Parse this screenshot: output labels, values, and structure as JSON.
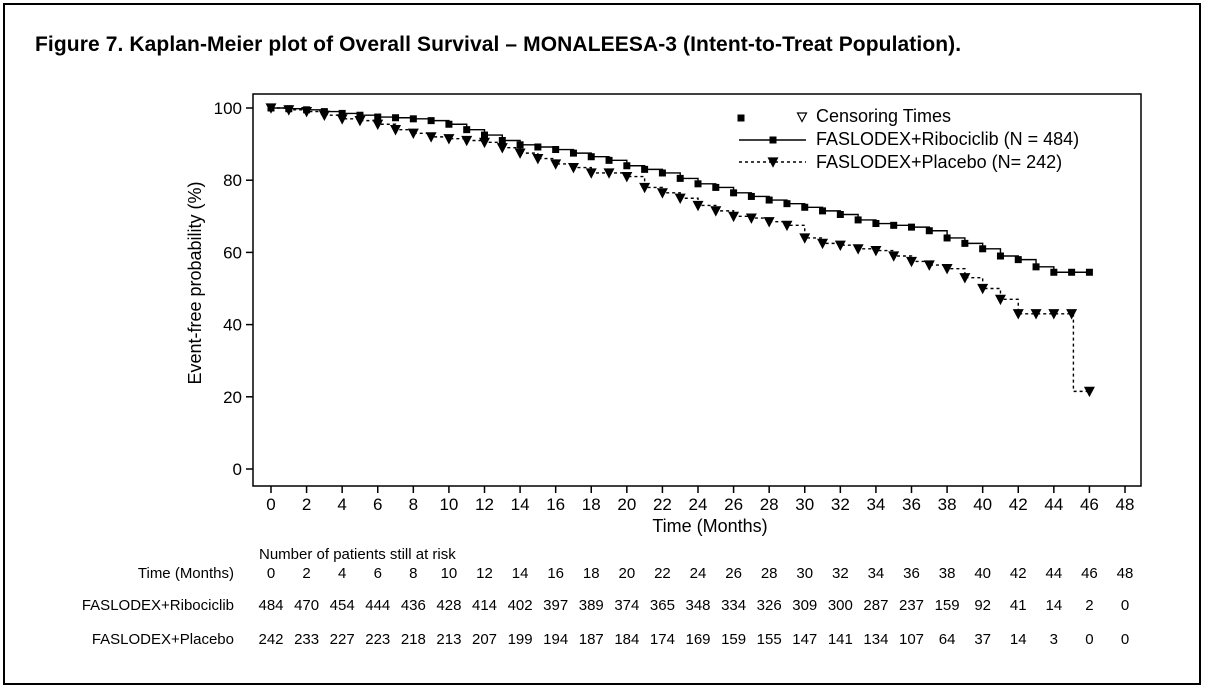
{
  "title": "Figure 7.  Kaplan-Meier plot of Overall Survival – MONALEESA-3 (Intent-to-Treat Population).",
  "colors": {
    "line": "#000000",
    "background": "#ffffff"
  },
  "chart_data": {
    "type": "line",
    "title": "",
    "xlabel": "Time (Months)",
    "ylabel": "Event-free probability (%)",
    "xlim": [
      0,
      48
    ],
    "ylim": [
      0,
      100
    ],
    "xticks": [
      0,
      2,
      4,
      6,
      8,
      10,
      12,
      14,
      16,
      18,
      20,
      22,
      24,
      26,
      28,
      30,
      32,
      34,
      36,
      38,
      40,
      42,
      44,
      46,
      48
    ],
    "yticks": [
      0,
      20,
      40,
      60,
      80,
      100
    ],
    "grid": false,
    "legend": {
      "placement": "top-right",
      "censor_label": "Censoring Times",
      "entries": [
        "FASLODEX+Ribociclib (N = 484)",
        "FASLODEX+Placebo (N= 242)"
      ]
    },
    "series": [
      {
        "name": "FASLODEX+Ribociclib (N = 484)",
        "line_style": "solid",
        "marker": "square",
        "x": [
          0,
          1,
          2,
          3,
          4,
          5,
          6,
          7,
          8,
          9,
          10,
          11,
          12,
          13,
          14,
          15,
          16,
          17,
          18,
          19,
          20,
          21,
          22,
          23,
          24,
          25,
          26,
          27,
          28,
          29,
          30,
          31,
          32,
          33,
          34,
          35,
          36,
          37,
          38,
          39,
          40,
          41,
          42,
          43,
          44,
          45,
          46
        ],
        "y": [
          100,
          99.8,
          99.5,
          99,
          98.5,
          98,
          97.5,
          97.3,
          97,
          96.5,
          95.5,
          94,
          92.5,
          91,
          89.8,
          89.2,
          88.5,
          87.5,
          86.5,
          85.5,
          84,
          83,
          82,
          80.5,
          79,
          78,
          76.5,
          75.5,
          74.5,
          73.5,
          72.5,
          71.5,
          70.5,
          69,
          68,
          67.5,
          67,
          66,
          64,
          62.5,
          61,
          59,
          58,
          56,
          54.5,
          54.5,
          54.5
        ]
      },
      {
        "name": "FASLODEX+Placebo (N= 242)",
        "line_style": "dashed",
        "marker": "triangle-down",
        "x": [
          0,
          1,
          2,
          3,
          4,
          5,
          6,
          7,
          8,
          9,
          10,
          11,
          12,
          13,
          14,
          15,
          16,
          17,
          18,
          19,
          20,
          21,
          22,
          23,
          24,
          25,
          26,
          27,
          28,
          29,
          30,
          31,
          32,
          33,
          34,
          35,
          36,
          37,
          38,
          39,
          40,
          41,
          42,
          43,
          44,
          45,
          45.1,
          46
        ],
        "y": [
          100,
          99.5,
          99,
          98,
          97,
          96.5,
          95.5,
          94,
          93,
          92,
          91.5,
          91,
          90.5,
          89,
          87.5,
          86,
          84.5,
          83.5,
          82,
          82,
          81,
          78,
          76.5,
          75,
          73,
          71.5,
          70,
          69.5,
          68.5,
          67.5,
          64,
          62.5,
          62,
          61,
          60.5,
          59,
          57.5,
          56.5,
          55.5,
          53,
          50,
          47,
          43,
          43,
          43,
          43,
          21.5,
          21.5
        ]
      }
    ]
  },
  "at_risk": {
    "caption": "Number of patients still at risk",
    "header_label": "Time (Months)",
    "times": [
      "0",
      "2",
      "4",
      "6",
      "8",
      "10",
      "12",
      "14",
      "16",
      "18",
      "20",
      "22",
      "24",
      "26",
      "28",
      "30",
      "32",
      "34",
      "36",
      "38",
      "40",
      "42",
      "44",
      "46",
      "48"
    ],
    "rows": [
      {
        "label": "FASLODEX+Ribociclib",
        "values": [
          "484",
          "470",
          "454",
          "444",
          "436",
          "428",
          "414",
          "402",
          "397",
          "389",
          "374",
          "365",
          "348",
          "334",
          "326",
          "309",
          "300",
          "287",
          "237",
          "159",
          "92",
          "41",
          "14",
          "2",
          "0"
        ]
      },
      {
        "label": "FASLODEX+Placebo",
        "values": [
          "242",
          "233",
          "227",
          "223",
          "218",
          "213",
          "207",
          "199",
          "194",
          "187",
          "184",
          "174",
          "169",
          "159",
          "155",
          "147",
          "141",
          "134",
          "107",
          "64",
          "37",
          "14",
          "3",
          "0",
          "0"
        ]
      }
    ]
  }
}
